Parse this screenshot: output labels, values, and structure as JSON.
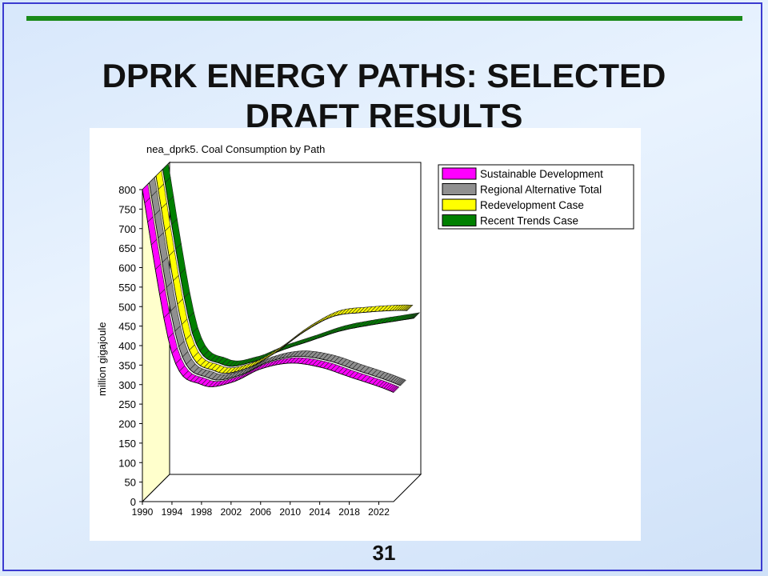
{
  "slide": {
    "title_line1": "DPRK ENERGY PATHS: SELECTED",
    "title_line2": "DRAFT RESULTS",
    "page_number": "31"
  },
  "colors": {
    "frame": "#3b3bd0",
    "rule": "#1a8a1a"
  },
  "chart_data": {
    "type": "area",
    "title": "nea_dprk5. Coal Consumption by Path",
    "ylabel": "million gigajoule",
    "xlabel": "",
    "ylim": [
      0,
      800
    ],
    "yticks": [
      0,
      50,
      100,
      150,
      200,
      250,
      300,
      350,
      400,
      450,
      500,
      550,
      600,
      650,
      700,
      750,
      800
    ],
    "x": [
      1990,
      1994,
      1998,
      2002,
      2006,
      2010,
      2014,
      2018,
      2022,
      2024
    ],
    "xtick_labels": [
      "1990",
      "1994",
      "1998",
      "2002",
      "2006",
      "2010",
      "2014",
      "2018",
      "2022"
    ],
    "legend_position": "top-right",
    "series": [
      {
        "name": "Sustainable Development",
        "color": "#ff00ff",
        "values": [
          800,
          380,
          300,
          305,
          340,
          355,
          345,
          320,
          295,
          280
        ]
      },
      {
        "name": "Regional Alternative Total",
        "color": "#909090",
        "values": [
          800,
          380,
          300,
          305,
          340,
          355,
          345,
          320,
          295,
          280
        ]
      },
      {
        "name": "Redevelopment Case",
        "color": "#ffff00",
        "values": [
          800,
          380,
          300,
          305,
          345,
          400,
          440,
          450,
          455,
          455
        ]
      },
      {
        "name": "Recent Trends Case",
        "color": "#008000",
        "values": [
          800,
          380,
          300,
          305,
          335,
          360,
          385,
          400,
          412,
          418
        ]
      }
    ]
  }
}
